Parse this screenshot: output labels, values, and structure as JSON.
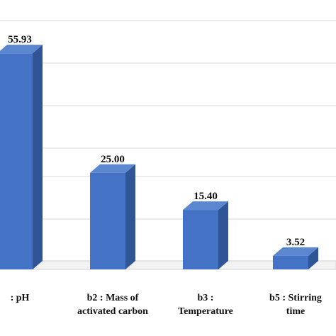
{
  "chart_data": {
    "type": "bar",
    "categories": [
      ": pH",
      "b2 : Mass of\nactivated carbon",
      "b3 :\nTemperature",
      "b5 : Stirring\ntime"
    ],
    "values": [
      55.93,
      25.0,
      15.4,
      3.52
    ],
    "data_labels": [
      "55.93",
      "25.00",
      "15.40",
      "3.52"
    ],
    "title": "",
    "xlabel": "",
    "ylabel": "",
    "ylim": [
      0,
      70
    ],
    "grid": true,
    "legend": "none",
    "style": "3d-column",
    "colors": {
      "bar_front": "#4472c4",
      "bar_side": "#2f5597",
      "bar_top": "#5b86d0",
      "grid": "#d9d9d9"
    }
  }
}
